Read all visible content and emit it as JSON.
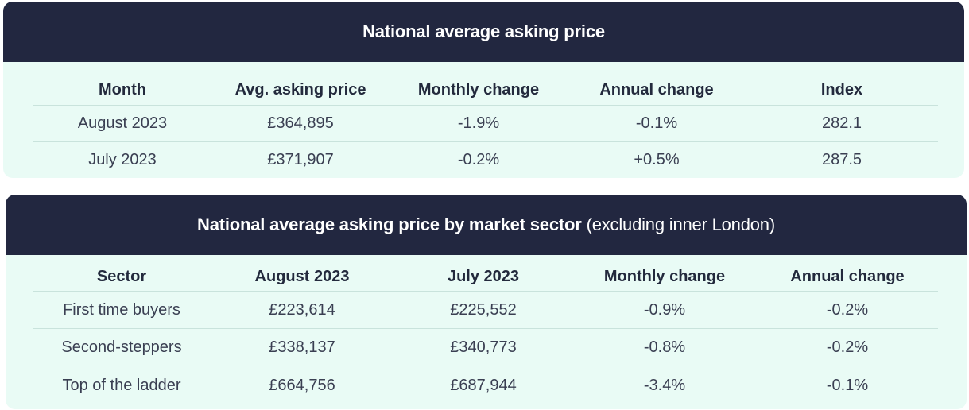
{
  "table1": {
    "title": "National average asking price",
    "headers": [
      "Month",
      "Avg. asking price",
      "Monthly change",
      "Annual change",
      "Index"
    ],
    "rows": [
      [
        "August 2023",
        "£364,895",
        "-1.9%",
        "-0.1%",
        "282.1"
      ],
      [
        "July 2023",
        "£371,907",
        "-0.2%",
        "+0.5%",
        "287.5"
      ]
    ]
  },
  "table2": {
    "title": "National average asking price by market sector",
    "subtitle": "(excluding inner London)",
    "headers": [
      "Sector",
      "August 2023",
      "July 2023",
      "Monthly change",
      "Annual change"
    ],
    "rows": [
      [
        "First time buyers",
        "£223,614",
        "£225,552",
        "-0.9%",
        "-0.2%"
      ],
      [
        "Second-steppers",
        "£338,137",
        "£340,773",
        "-0.8%",
        "-0.2%"
      ],
      [
        "Top of the ladder",
        "£664,756",
        "£687,944",
        "-3.4%",
        "-0.1%"
      ]
    ]
  },
  "colors": {
    "header_bg": "#222740",
    "body_bg": "#e9fbf5",
    "text": "#232a3d"
  }
}
